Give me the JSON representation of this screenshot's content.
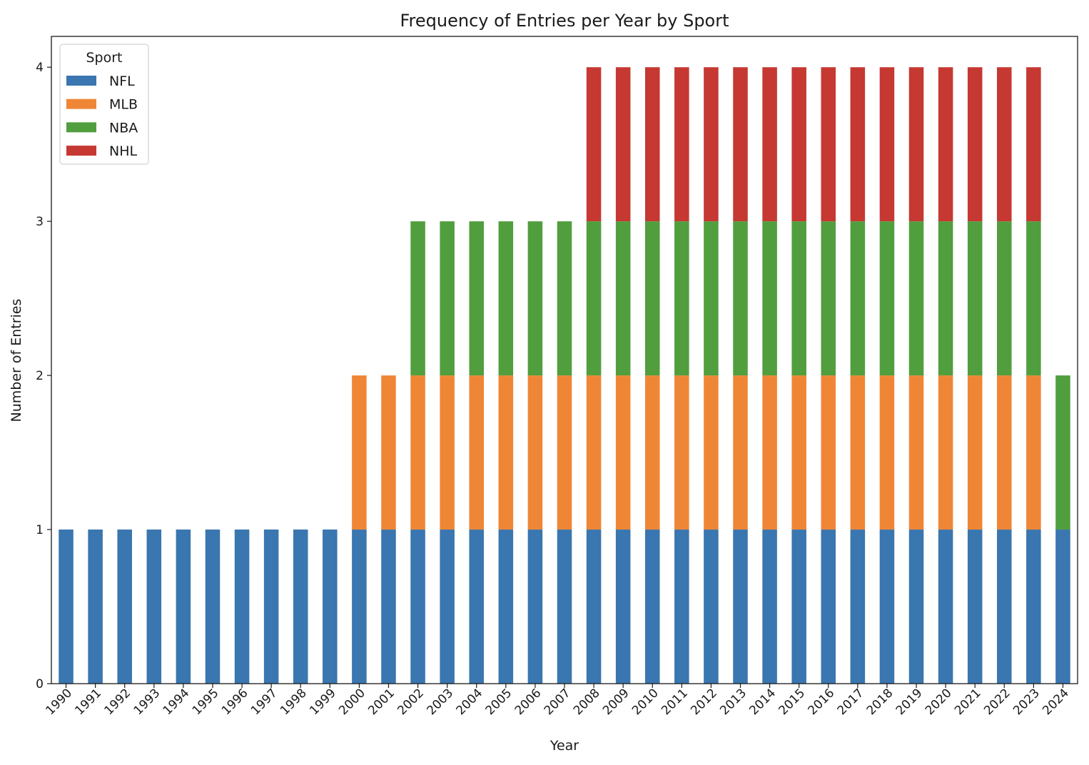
{
  "chart_data": {
    "type": "bar",
    "stacked": true,
    "title": "Frequency of Entries per Year by Sport",
    "xlabel": "Year",
    "ylabel": "Number of Entries",
    "ylim": [
      0,
      4.2
    ],
    "yticks": [
      0,
      1,
      2,
      3,
      4
    ],
    "grid": false,
    "legend_position": "top-left",
    "legend_title": "Sport",
    "categories": [
      "1990",
      "1991",
      "1992",
      "1993",
      "1994",
      "1995",
      "1996",
      "1997",
      "1998",
      "1999",
      "2000",
      "2001",
      "2002",
      "2003",
      "2004",
      "2005",
      "2006",
      "2007",
      "2008",
      "2009",
      "2010",
      "2011",
      "2012",
      "2013",
      "2014",
      "2015",
      "2016",
      "2017",
      "2018",
      "2019",
      "2020",
      "2021",
      "2022",
      "2023",
      "2024"
    ],
    "series": [
      {
        "name": "NFL",
        "color": "#3a76af",
        "values": [
          1,
          1,
          1,
          1,
          1,
          1,
          1,
          1,
          1,
          1,
          1,
          1,
          1,
          1,
          1,
          1,
          1,
          1,
          1,
          1,
          1,
          1,
          1,
          1,
          1,
          1,
          1,
          1,
          1,
          1,
          1,
          1,
          1,
          1,
          1
        ]
      },
      {
        "name": "MLB",
        "color": "#ef8636",
        "values": [
          0,
          0,
          0,
          0,
          0,
          0,
          0,
          0,
          0,
          0,
          1,
          1,
          1,
          1,
          1,
          1,
          1,
          1,
          1,
          1,
          1,
          1,
          1,
          1,
          1,
          1,
          1,
          1,
          1,
          1,
          1,
          1,
          1,
          1,
          0
        ]
      },
      {
        "name": "NBA",
        "color": "#519e3e",
        "values": [
          0,
          0,
          0,
          0,
          0,
          0,
          0,
          0,
          0,
          0,
          0,
          0,
          1,
          1,
          1,
          1,
          1,
          1,
          1,
          1,
          1,
          1,
          1,
          1,
          1,
          1,
          1,
          1,
          1,
          1,
          1,
          1,
          1,
          1,
          1
        ]
      },
      {
        "name": "NHL",
        "color": "#c53932",
        "values": [
          0,
          0,
          0,
          0,
          0,
          0,
          0,
          0,
          0,
          0,
          0,
          0,
          0,
          0,
          0,
          0,
          0,
          0,
          1,
          1,
          1,
          1,
          1,
          1,
          1,
          1,
          1,
          1,
          1,
          1,
          1,
          1,
          1,
          1,
          0
        ]
      }
    ]
  }
}
